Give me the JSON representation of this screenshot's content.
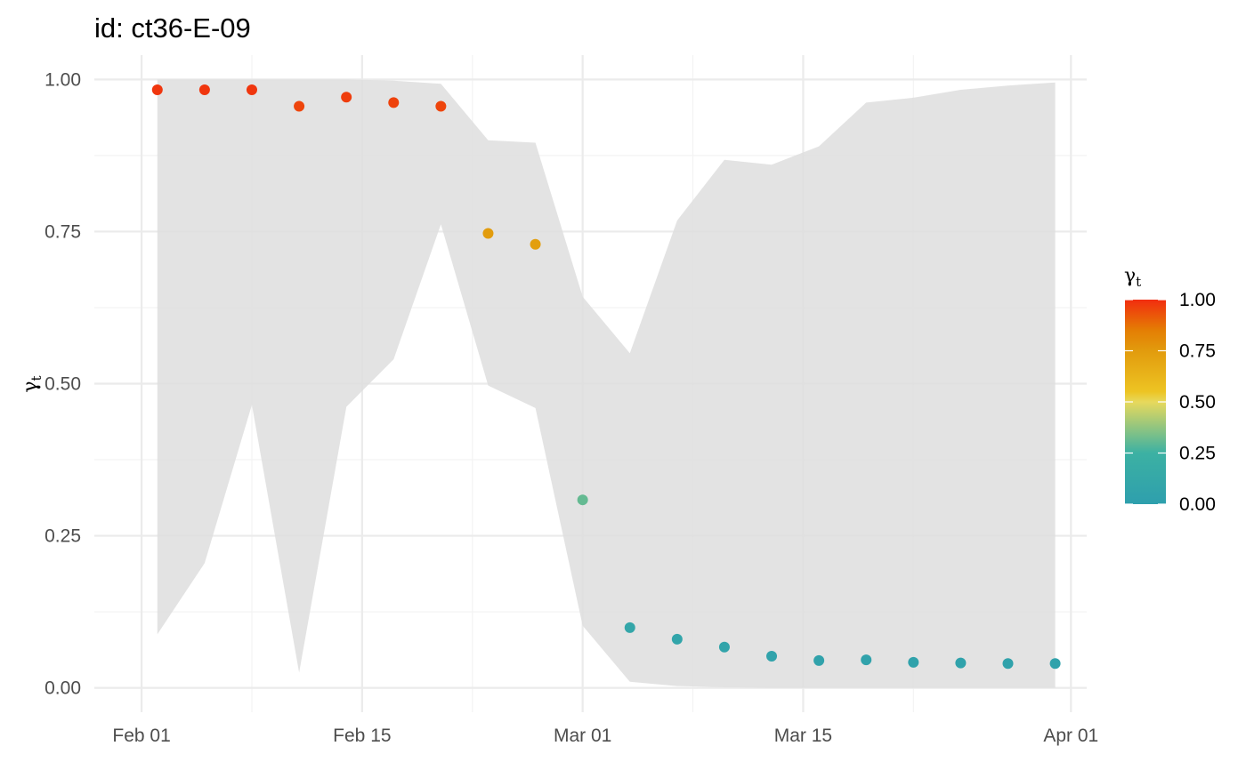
{
  "chart_data": {
    "type": "scatter",
    "title": "id: ct36-E-09",
    "xlabel": "",
    "ylabel": "γt",
    "ylabel_main": "γ",
    "ylabel_sub": "t",
    "x_ticks": [
      {
        "label": "Feb 01",
        "value": "2021-02-01"
      },
      {
        "label": "Feb 15",
        "value": "2021-02-15"
      },
      {
        "label": "Mar 01",
        "value": "2021-03-01"
      },
      {
        "label": "Mar 15",
        "value": "2021-03-15"
      },
      {
        "label": "Apr 01",
        "value": "2021-04-01"
      }
    ],
    "x_minor_ticks": [
      "2021-02-08",
      "2021-02-22",
      "2021-03-08",
      "2021-03-22"
    ],
    "xlim": [
      "2021-01-29",
      "2021-04-02"
    ],
    "y_ticks": [
      {
        "label": "0.00",
        "value": 0
      },
      {
        "label": "0.25",
        "value": 0.25
      },
      {
        "label": "0.50",
        "value": 0.5
      },
      {
        "label": "0.75",
        "value": 0.75
      },
      {
        "label": "1.00",
        "value": 1
      }
    ],
    "ylim": [
      -0.04,
      1.04
    ],
    "grid": true,
    "ribbon": [
      {
        "x": "2021-02-02",
        "lower": 0.088,
        "upper": 1.0
      },
      {
        "x": "2021-02-05",
        "lower": 0.205,
        "upper": 1.0
      },
      {
        "x": "2021-02-08",
        "lower": 0.465,
        "upper": 1.0
      },
      {
        "x": "2021-02-11",
        "lower": 0.025,
        "upper": 1.0
      },
      {
        "x": "2021-02-14",
        "lower": 0.462,
        "upper": 1.0
      },
      {
        "x": "2021-02-17",
        "lower": 0.54,
        "upper": 0.998
      },
      {
        "x": "2021-02-20",
        "lower": 0.762,
        "upper": 0.993
      },
      {
        "x": "2021-02-23",
        "lower": 0.497,
        "upper": 0.9
      },
      {
        "x": "2021-02-26",
        "lower": 0.46,
        "upper": 0.896
      },
      {
        "x": "2021-03-01",
        "lower": 0.102,
        "upper": 0.643
      },
      {
        "x": "2021-03-04",
        "lower": 0.01,
        "upper": 0.55
      },
      {
        "x": "2021-03-07",
        "lower": 0.003,
        "upper": 0.768
      },
      {
        "x": "2021-03-10",
        "lower": 0.001,
        "upper": 0.868
      },
      {
        "x": "2021-03-13",
        "lower": 0.0,
        "upper": 0.86
      },
      {
        "x": "2021-03-16",
        "lower": 0.0,
        "upper": 0.89
      },
      {
        "x": "2021-03-19",
        "lower": 0.0,
        "upper": 0.962
      },
      {
        "x": "2021-03-22",
        "lower": 0.0,
        "upper": 0.97
      },
      {
        "x": "2021-03-25",
        "lower": 0.0,
        "upper": 0.983
      },
      {
        "x": "2021-03-28",
        "lower": 0.0,
        "upper": 0.99
      },
      {
        "x": "2021-03-31",
        "lower": 0.0,
        "upper": 0.995
      }
    ],
    "points": [
      {
        "x": "2021-02-02",
        "y": 0.983
      },
      {
        "x": "2021-02-05",
        "y": 0.983
      },
      {
        "x": "2021-02-08",
        "y": 0.983
      },
      {
        "x": "2021-02-11",
        "y": 0.956
      },
      {
        "x": "2021-02-14",
        "y": 0.971
      },
      {
        "x": "2021-02-17",
        "y": 0.962
      },
      {
        "x": "2021-02-20",
        "y": 0.956
      },
      {
        "x": "2021-02-23",
        "y": 0.747
      },
      {
        "x": "2021-02-26",
        "y": 0.729
      },
      {
        "x": "2021-03-01",
        "y": 0.309
      },
      {
        "x": "2021-03-04",
        "y": 0.099
      },
      {
        "x": "2021-03-07",
        "y": 0.08
      },
      {
        "x": "2021-03-10",
        "y": 0.067
      },
      {
        "x": "2021-03-13",
        "y": 0.052
      },
      {
        "x": "2021-03-16",
        "y": 0.045
      },
      {
        "x": "2021-03-19",
        "y": 0.046
      },
      {
        "x": "2021-03-22",
        "y": 0.042
      },
      {
        "x": "2021-03-25",
        "y": 0.041
      },
      {
        "x": "2021-03-28",
        "y": 0.04
      },
      {
        "x": "2021-03-31",
        "y": 0.04
      }
    ],
    "colors": {
      "ribbon": "#dedede",
      "grid_major": "#ebebeb",
      "grid_minor": "#f3f3f3",
      "scale": [
        {
          "value": 0.0,
          "color": "#2e9fad"
        },
        {
          "value": 0.25,
          "color": "#3cb1a3"
        },
        {
          "value": 0.5,
          "color": "#e7d95c"
        },
        {
          "value": 0.55,
          "color": "#edc423"
        },
        {
          "value": 0.75,
          "color": "#e29b0d"
        },
        {
          "value": 0.85,
          "color": "#e47e04"
        },
        {
          "value": 1.0,
          "color": "#f22d0f"
        }
      ]
    },
    "legend": {
      "title_main": "γ",
      "title_sub": "t",
      "placement": "right",
      "labels": [
        {
          "label": "1.00",
          "value": 1
        },
        {
          "label": "0.75",
          "value": 0.75
        },
        {
          "label": "0.50",
          "value": 0.5
        },
        {
          "label": "0.25",
          "value": 0.25
        },
        {
          "label": "0.00",
          "value": 0
        }
      ]
    }
  }
}
